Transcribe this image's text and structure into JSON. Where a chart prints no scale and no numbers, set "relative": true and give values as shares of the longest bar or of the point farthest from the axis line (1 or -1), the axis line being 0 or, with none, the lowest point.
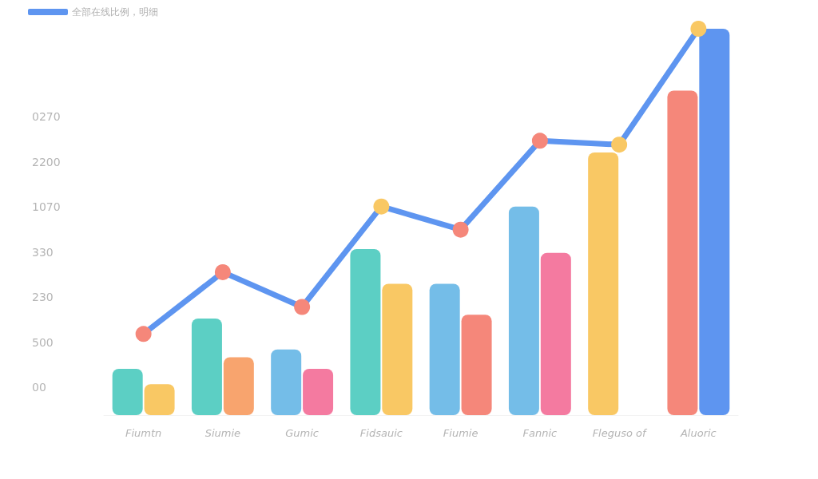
{
  "chart_data": {
    "type": "bar",
    "relative": true,
    "categories": [
      "Fiumtn",
      "Siumie",
      "Gumic",
      "Fidsauic",
      "Fiumie",
      "Fannic",
      "Fleguso of",
      "Aluoric"
    ],
    "series": [
      {
        "colors": [
          "#5ccfc4",
          "#5ccfc4",
          "#74bde8",
          "#5ccfc4",
          "#74bde8",
          "#74bde8",
          "#f9c864",
          "#f5877a"
        ],
        "color": "#5ccfc4",
        "values": [
          0.12,
          0.25,
          0.17,
          0.43,
          0.34,
          0.54,
          0.68,
          0.84
        ]
      },
      {
        "colors": [
          "#f9c864",
          "#f8a46e",
          "#f47aa0",
          "#f9c864",
          "#f5877a",
          "#f47aa0",
          null,
          "#5e95f0"
        ],
        "color": "#f9c864",
        "values": [
          0.08,
          0.15,
          0.12,
          0.34,
          0.26,
          0.42,
          null,
          1.0
        ]
      },
      {
        "type": "line",
        "name": "全部在线比例，明细",
        "color": "#5e95f0",
        "marker": "circle",
        "colors": [
          "#f5877a",
          "#f5877a",
          "#f5877a",
          "#f9c864",
          "#f5877a",
          "#f5877a",
          "#f9c864",
          "#f9c864"
        ],
        "values": [
          0.21,
          0.37,
          0.28,
          0.54,
          0.48,
          0.71,
          0.7,
          1.0
        ]
      }
    ],
    "annotations": [
      "0270",
      "2200",
      "1070",
      "330",
      "230",
      "500",
      "00"
    ],
    "legend": "top left",
    "grid": false
  }
}
